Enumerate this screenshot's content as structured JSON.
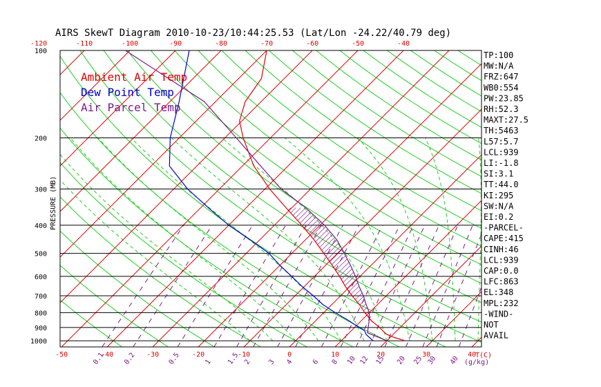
{
  "chart_data": {
    "type": "line",
    "title": "AIRS SkewT Diagram 2010-10-23/10:44:25.53 (Lat/Lon -24.22/40.79 deg)",
    "ylabel": "PRESSURE (MB)",
    "xlabel_bottom_unit": "T(C)",
    "mixing_ratio_unit": "(g/kg)",
    "y_ticks": [
      100,
      200,
      300,
      400,
      500,
      600,
      700,
      800,
      900,
      1000
    ],
    "ylim": [
      1050,
      100
    ],
    "x_ticks_bottom": [
      -50,
      -40,
      -30,
      -20,
      -10,
      0,
      10,
      20,
      30,
      40
    ],
    "x_ticks_top": [
      -120,
      -110,
      -100,
      -90,
      -80,
      -70,
      -60,
      -50,
      -40
    ],
    "mixing_ratio_labels": [
      "0.1",
      "0.2",
      "0.5",
      "1",
      "1.5",
      "2",
      "3",
      "4",
      "6",
      "8",
      "10",
      "12",
      "15",
      "20",
      "25",
      "30",
      "40"
    ],
    "legend": [
      {
        "name": "Ambient Air Temp",
        "color": "#dd0000"
      },
      {
        "name": "Dew Point Temp",
        "color": "#0000cc"
      },
      {
        "name": "Air Parcel Temp",
        "color": "#7a1a8a"
      }
    ],
    "series": [
      {
        "name": "Ambient Air Temp",
        "color": "#dd0000",
        "points": [
          {
            "p": 1000,
            "t": 24.0
          },
          {
            "p": 975,
            "t": 21.0
          },
          {
            "p": 950,
            "t": 18.5
          },
          {
            "p": 925,
            "t": 17.0
          },
          {
            "p": 900,
            "t": 15.5
          },
          {
            "p": 850,
            "t": 12.0
          },
          {
            "p": 800,
            "t": 9.0
          },
          {
            "p": 750,
            "t": 6.0
          },
          {
            "p": 700,
            "t": 2.5
          },
          {
            "p": 650,
            "t": -1.0
          },
          {
            "p": 600,
            "t": -4.5
          },
          {
            "p": 550,
            "t": -8.5
          },
          {
            "p": 500,
            "t": -13.0
          },
          {
            "p": 450,
            "t": -18.0
          },
          {
            "p": 400,
            "t": -24.0
          },
          {
            "p": 350,
            "t": -31.0
          },
          {
            "p": 300,
            "t": -39.0
          },
          {
            "p": 250,
            "t": -47.5
          },
          {
            "p": 200,
            "t": -56.0
          },
          {
            "p": 175,
            "t": -60.5
          },
          {
            "p": 150,
            "t": -63.5
          },
          {
            "p": 125,
            "t": -65.0
          },
          {
            "p": 100,
            "t": -70.0
          }
        ]
      },
      {
        "name": "Dew Point Temp",
        "color": "#0000cc",
        "points": [
          {
            "p": 1000,
            "t": 17.0
          },
          {
            "p": 975,
            "t": 15.5
          },
          {
            "p": 950,
            "t": 14.0
          },
          {
            "p": 925,
            "t": 13.0
          },
          {
            "p": 900,
            "t": 11.0
          },
          {
            "p": 850,
            "t": 7.0
          },
          {
            "p": 800,
            "t": 2.5
          },
          {
            "p": 750,
            "t": -2.0
          },
          {
            "p": 700,
            "t": -6.0
          },
          {
            "p": 650,
            "t": -10.5
          },
          {
            "p": 600,
            "t": -15.0
          },
          {
            "p": 550,
            "t": -20.0
          },
          {
            "p": 500,
            "t": -25.0
          },
          {
            "p": 450,
            "t": -32.0
          },
          {
            "p": 400,
            "t": -40.0
          },
          {
            "p": 350,
            "t": -48.0
          },
          {
            "p": 300,
            "t": -57.0
          },
          {
            "p": 250,
            "t": -66.0
          },
          {
            "p": 200,
            "t": -72.0
          },
          {
            "p": 150,
            "t": -78.0
          },
          {
            "p": 100,
            "t": -87.0
          }
        ]
      },
      {
        "name": "Air Parcel Temp",
        "color": "#7a1a8a",
        "points": [
          {
            "p": 1000,
            "t": 20.0
          },
          {
            "p": 939,
            "t": 14.0
          },
          {
            "p": 900,
            "t": 13.0
          },
          {
            "p": 863,
            "t": 12.0
          },
          {
            "p": 800,
            "t": 10.0
          },
          {
            "p": 750,
            "t": 7.5
          },
          {
            "p": 700,
            "t": 5.0
          },
          {
            "p": 650,
            "t": 2.0
          },
          {
            "p": 600,
            "t": -1.0
          },
          {
            "p": 550,
            "t": -4.5
          },
          {
            "p": 500,
            "t": -8.5
          },
          {
            "p": 450,
            "t": -13.0
          },
          {
            "p": 400,
            "t": -19.0
          },
          {
            "p": 348,
            "t": -27.0
          },
          {
            "p": 300,
            "t": -36.5
          },
          {
            "p": 250,
            "t": -46.0
          },
          {
            "p": 200,
            "t": -57.5
          },
          {
            "p": 150,
            "t": -72.5
          },
          {
            "p": 100,
            "t": -101.0
          }
        ]
      }
    ],
    "cape_shading": {
      "p_bottom": 863,
      "p_top": 348
    }
  },
  "side_panel": [
    "TP:100",
    "MW:N/A",
    "FRZ:647",
    "WB0:554",
    "PW:23.85",
    "RH:52.3",
    "MAXT:27.5",
    "TH:5463",
    "L57:5.7",
    "LCL:939",
    "LI:-1.8",
    "SI:3.1",
    "TT:44.0",
    "KI:295",
    "SW:N/A",
    "EI:0.2",
    "-PARCEL-",
    "CAPE:415",
    "CINH:46",
    "LCL:939",
    "CAP:0.0",
    "LFC:863",
    "EL:348",
    "MPL:232",
    "-WIND-",
    "NOT",
    "AVAIL"
  ]
}
